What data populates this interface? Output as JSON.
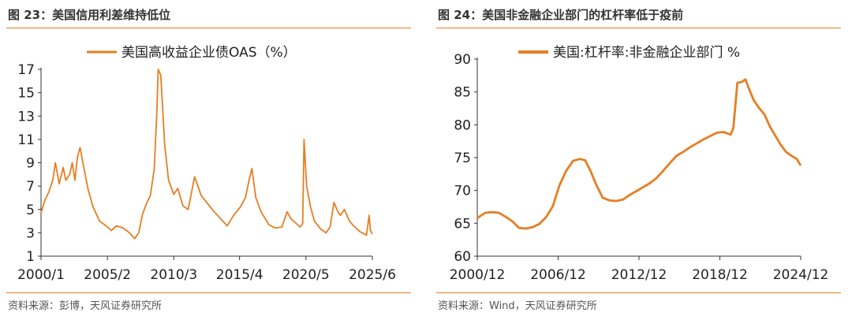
{
  "chart_data": [
    {
      "type": "line",
      "title": "图 23：美国信用利差维持低位",
      "source": "资料来源：彭博，天风证券研究所",
      "legend": "美国高收益企业债OAS（%）",
      "legend_position": "top",
      "xlabel": "",
      "ylabel": "",
      "ylim": [
        1,
        17
      ],
      "yticks": [
        "17",
        "15",
        "13",
        "11",
        "9",
        "7",
        "5",
        "3",
        "1"
      ],
      "xlim": [
        2000.0,
        2025.45
      ],
      "xtick_labels": [
        "2000/1",
        "2005/2",
        "2010/3",
        "2015/4",
        "2020/5",
        "2025/6"
      ],
      "xtick_values": [
        2000.0,
        2005.1,
        2010.2,
        2015.25,
        2020.35,
        2025.45
      ],
      "color": "#e67e22",
      "series": [
        {
          "name": "美国高收益企业债OAS（%）",
          "x": [
            2000.0,
            2000.3,
            2000.6,
            2000.9,
            2001.1,
            2001.4,
            2001.7,
            2001.9,
            2002.2,
            2002.4,
            2002.6,
            2002.8,
            2003.0,
            2003.3,
            2003.6,
            2004.0,
            2004.5,
            2005.0,
            2005.4,
            2005.8,
            2006.3,
            2006.8,
            2007.2,
            2007.5,
            2007.8,
            2008.1,
            2008.4,
            2008.7,
            2008.9,
            2009.0,
            2009.2,
            2009.5,
            2009.8,
            2010.2,
            2010.5,
            2010.9,
            2011.3,
            2011.8,
            2012.3,
            2012.8,
            2013.3,
            2013.8,
            2014.3,
            2014.8,
            2015.3,
            2015.7,
            2016.0,
            2016.2,
            2016.5,
            2016.9,
            2017.5,
            2018.0,
            2018.5,
            2018.9,
            2019.2,
            2019.6,
            2019.9,
            2020.1,
            2020.2,
            2020.4,
            2020.7,
            2021.0,
            2021.5,
            2021.9,
            2022.2,
            2022.5,
            2022.8,
            2023.0,
            2023.3,
            2023.7,
            2024.0,
            2024.5,
            2025.0,
            2025.2,
            2025.3,
            2025.45
          ],
          "values": [
            4.7,
            5.8,
            6.5,
            7.5,
            9.0,
            7.2,
            8.6,
            7.5,
            8.0,
            9.0,
            7.5,
            9.5,
            10.3,
            8.5,
            6.8,
            5.2,
            4.0,
            3.6,
            3.2,
            3.6,
            3.4,
            3.0,
            2.5,
            3.0,
            4.6,
            5.5,
            6.2,
            8.5,
            13.5,
            17.0,
            16.5,
            10.5,
            7.5,
            6.3,
            6.8,
            5.3,
            5.0,
            7.8,
            6.2,
            5.5,
            4.8,
            4.2,
            3.6,
            4.5,
            5.2,
            6.0,
            7.6,
            8.5,
            6.0,
            4.8,
            3.7,
            3.4,
            3.5,
            4.8,
            4.2,
            3.8,
            3.5,
            3.8,
            11.0,
            7.0,
            5.2,
            4.0,
            3.3,
            3.0,
            3.5,
            5.6,
            4.8,
            4.5,
            5.0,
            4.0,
            3.6,
            3.1,
            2.8,
            4.5,
            3.2,
            2.9
          ]
        }
      ]
    },
    {
      "type": "line",
      "title": "图 24：美国非金融企业部门的杠杆率低于疫前",
      "source": "资料来源：Wind，天风证券研究所",
      "legend": "美国:杠杆率:非金融企业部门 %",
      "legend_position": "top",
      "xlabel": "",
      "ylabel": "",
      "ylim": [
        60,
        90
      ],
      "yticks": [
        "90",
        "85",
        "80",
        "75",
        "70",
        "65",
        "60"
      ],
      "xlim": [
        2000.9,
        2024.9
      ],
      "xtick_labels": [
        "2000/12",
        "2006/12",
        "2012/12",
        "2018/12",
        "2024/12"
      ],
      "xtick_values": [
        2000.9,
        2006.9,
        2012.9,
        2018.9,
        2024.9
      ],
      "color": "#e67e22",
      "series": [
        {
          "name": "美国:杠杆率:非金融企业部门 %",
          "x": [
            2000.9,
            2001.2,
            2001.5,
            2002.0,
            2002.5,
            2003.0,
            2003.5,
            2004.0,
            2004.5,
            2005.0,
            2005.5,
            2006.0,
            2006.5,
            2007.0,
            2007.5,
            2008.0,
            2008.5,
            2008.9,
            2009.3,
            2009.7,
            2010.2,
            2010.7,
            2011.2,
            2011.7,
            2012.2,
            2012.7,
            2013.2,
            2013.7,
            2014.2,
            2014.7,
            2015.2,
            2015.7,
            2016.2,
            2016.7,
            2017.2,
            2017.7,
            2018.2,
            2018.7,
            2019.2,
            2019.7,
            2019.9,
            2020.2,
            2020.5,
            2020.8,
            2021.0,
            2021.4,
            2021.8,
            2022.2,
            2022.6,
            2023.0,
            2023.4,
            2023.8,
            2024.2,
            2024.6,
            2024.9
          ],
          "values": [
            65.8,
            66.2,
            66.6,
            66.7,
            66.6,
            66.0,
            65.3,
            64.3,
            64.2,
            64.4,
            64.9,
            65.9,
            67.6,
            70.8,
            73.0,
            74.5,
            74.8,
            74.6,
            73.0,
            71.0,
            68.9,
            68.5,
            68.4,
            68.6,
            69.3,
            69.9,
            70.5,
            71.1,
            71.9,
            73.0,
            74.2,
            75.3,
            75.9,
            76.6,
            77.2,
            77.8,
            78.3,
            78.8,
            78.9,
            78.5,
            79.5,
            86.4,
            86.5,
            86.9,
            85.8,
            83.8,
            82.6,
            81.6,
            79.8,
            78.4,
            77.0,
            75.9,
            75.3,
            74.8,
            73.8
          ]
        }
      ]
    }
  ]
}
